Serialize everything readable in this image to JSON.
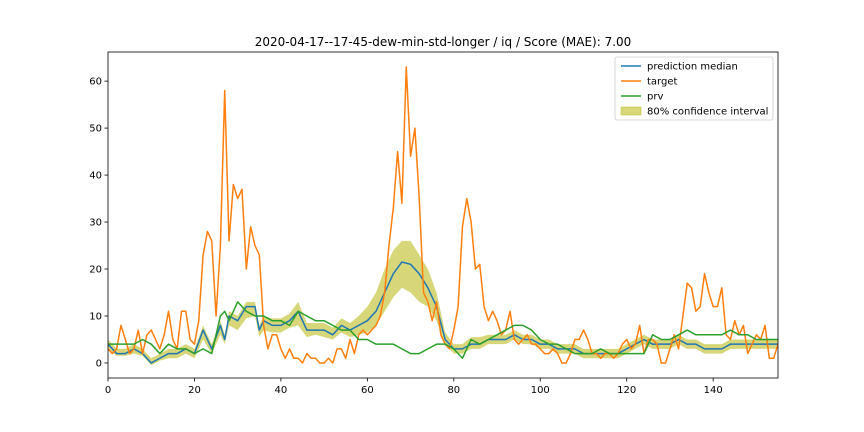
{
  "chart_data": {
    "type": "line",
    "title": "2020-04-17--17-45-dew-min-std-longer / iq / Score (MAE): 7.00",
    "xlabel": "",
    "ylabel": "",
    "xlim": [
      0,
      155
    ],
    "ylim": [
      -3.2,
      66.2
    ],
    "xticks": [
      0,
      20,
      40,
      60,
      80,
      100,
      120,
      140
    ],
    "yticks": [
      0,
      10,
      20,
      30,
      40,
      50,
      60
    ],
    "grid": false,
    "legend_position": "top-right",
    "colors": {
      "prediction": "#1f77b4",
      "target": "#ff7f0e",
      "prv": "#2ca02c",
      "ci": "#bcbd22"
    },
    "series": [
      {
        "name": "prediction median",
        "key": "prediction",
        "x": [
          0,
          2,
          4,
          6,
          8,
          10,
          12,
          14,
          16,
          18,
          20,
          22,
          24,
          26,
          27,
          28,
          30,
          32,
          34,
          35,
          36,
          38,
          40,
          42,
          44,
          46,
          48,
          50,
          52,
          54,
          56,
          58,
          60,
          62,
          64,
          66,
          68,
          70,
          72,
          74,
          76,
          78,
          80,
          82,
          84,
          86,
          88,
          90,
          92,
          94,
          96,
          98,
          100,
          102,
          104,
          106,
          108,
          110,
          112,
          114,
          116,
          118,
          120,
          122,
          124,
          126,
          128,
          130,
          132,
          134,
          136,
          138,
          140,
          142,
          144,
          146,
          148,
          150,
          152,
          155
        ],
        "values": [
          4,
          2,
          2,
          3,
          2,
          0,
          1,
          2,
          2,
          3,
          2,
          7,
          3,
          8,
          5,
          10,
          9,
          12,
          12,
          7,
          9,
          8,
          8,
          9,
          11,
          7,
          7,
          7,
          6,
          8,
          7,
          8,
          9,
          11,
          15,
          19,
          21.5,
          21,
          19,
          16,
          12,
          5,
          3,
          3,
          4,
          4,
          5,
          5,
          5,
          6,
          5,
          5,
          4,
          4,
          3,
          3,
          3,
          2,
          2,
          2,
          2,
          2,
          3,
          4,
          5,
          4,
          4,
          4,
          5,
          4,
          4,
          3,
          3,
          3,
          4,
          4,
          4,
          4,
          4,
          4
        ]
      },
      {
        "name": "target",
        "key": "target",
        "x": [
          0,
          1,
          2,
          3,
          4,
          5,
          6,
          7,
          8,
          9,
          10,
          11,
          12,
          13,
          14,
          15,
          16,
          17,
          18,
          19,
          20,
          21,
          22,
          23,
          24,
          25,
          26,
          27,
          28,
          29,
          30,
          31,
          32,
          33,
          34,
          35,
          36,
          37,
          38,
          39,
          40,
          41,
          42,
          43,
          44,
          45,
          46,
          47,
          48,
          49,
          50,
          51,
          52,
          53,
          54,
          55,
          56,
          57,
          58,
          59,
          60,
          61,
          62,
          63,
          64,
          65,
          66,
          67,
          68,
          69,
          70,
          71,
          72,
          73,
          74,
          75,
          76,
          77,
          78,
          79,
          80,
          81,
          82,
          83,
          84,
          85,
          86,
          87,
          88,
          89,
          90,
          91,
          92,
          93,
          94,
          95,
          96,
          97,
          98,
          99,
          100,
          101,
          102,
          103,
          104,
          105,
          106,
          107,
          108,
          109,
          110,
          111,
          112,
          113,
          114,
          115,
          116,
          117,
          118,
          119,
          120,
          121,
          122,
          123,
          124,
          125,
          126,
          127,
          128,
          129,
          130,
          131,
          132,
          133,
          134,
          135,
          136,
          137,
          138,
          139,
          140,
          141,
          142,
          143,
          144,
          145,
          146,
          147,
          148,
          149,
          150,
          151,
          152,
          153,
          154,
          155
        ],
        "values": [
          3,
          2,
          3,
          8,
          5,
          2,
          3,
          7,
          2,
          6,
          7,
          5,
          3,
          6,
          11,
          5,
          3,
          11,
          11,
          5,
          4,
          9,
          23,
          28,
          26,
          10,
          25,
          58,
          26,
          38,
          35,
          37,
          20,
          29,
          25,
          23,
          8,
          3,
          6,
          6,
          3,
          1,
          3,
          1,
          1,
          0,
          2,
          1,
          1,
          0,
          0,
          1,
          0,
          3,
          3,
          1,
          5,
          2,
          6,
          7,
          6,
          7,
          8,
          10,
          15,
          25,
          33,
          45,
          34,
          63,
          44,
          50,
          35,
          15,
          13,
          9,
          13,
          6,
          4,
          3,
          7,
          12,
          29,
          35,
          30,
          20,
          21,
          12,
          9,
          11,
          9,
          6,
          7,
          11,
          5,
          4,
          5,
          6,
          4,
          4,
          3,
          2,
          2,
          3,
          2,
          0,
          0,
          2,
          5,
          5,
          7,
          5,
          2,
          2,
          1,
          2,
          2,
          1,
          2,
          4,
          5,
          3,
          4,
          8,
          2,
          5,
          5,
          4,
          0,
          0,
          3,
          6,
          3,
          10,
          17,
          16,
          11,
          12,
          19,
          15,
          12,
          12,
          16,
          6,
          5,
          9,
          6,
          8,
          2,
          4,
          6,
          5,
          8,
          1,
          1,
          4
        ]
      },
      {
        "name": "prv",
        "key": "prv",
        "x": [
          0,
          2,
          4,
          6,
          8,
          10,
          12,
          14,
          16,
          18,
          20,
          22,
          24,
          26,
          27,
          28,
          30,
          32,
          34,
          36,
          38,
          40,
          42,
          44,
          46,
          48,
          50,
          52,
          54,
          56,
          58,
          60,
          62,
          64,
          66,
          68,
          70,
          72,
          74,
          76,
          78,
          80,
          82,
          84,
          86,
          88,
          90,
          92,
          94,
          96,
          98,
          100,
          102,
          104,
          106,
          108,
          110,
          112,
          114,
          116,
          118,
          120,
          122,
          124,
          126,
          128,
          130,
          132,
          134,
          136,
          138,
          140,
          142,
          144,
          146,
          148,
          150,
          152,
          155
        ],
        "values": [
          4,
          4,
          4,
          4,
          5,
          4,
          2,
          4,
          3,
          3,
          2,
          3,
          2,
          10,
          11,
          9,
          13,
          11,
          10,
          10,
          9,
          9,
          8,
          11,
          10,
          9,
          9,
          8,
          7,
          7,
          5,
          5,
          4,
          4,
          4,
          3,
          2,
          2,
          3,
          4,
          4,
          3,
          1,
          5,
          4,
          5,
          6,
          7,
          8,
          8,
          7,
          5,
          4,
          4,
          3,
          2,
          2,
          2,
          3,
          2,
          2,
          2,
          2,
          2,
          6,
          5,
          5,
          6,
          7,
          6,
          6,
          6,
          6,
          7,
          6,
          6,
          5,
          5,
          5
        ]
      }
    ],
    "confidence_band": {
      "name": "80% confidence interval",
      "key": "ci",
      "x": [
        0,
        2,
        4,
        6,
        8,
        10,
        12,
        14,
        16,
        18,
        20,
        22,
        24,
        26,
        27,
        28,
        30,
        32,
        34,
        35,
        36,
        38,
        40,
        42,
        44,
        46,
        48,
        50,
        52,
        54,
        56,
        58,
        60,
        62,
        64,
        66,
        68,
        70,
        72,
        74,
        76,
        78,
        80,
        82,
        84,
        86,
        88,
        90,
        92,
        94,
        96,
        98,
        100,
        102,
        104,
        106,
        108,
        110,
        112,
        114,
        116,
        118,
        120,
        122,
        124,
        126,
        128,
        130,
        132,
        134,
        136,
        138,
        140,
        142,
        144,
        146,
        148,
        150,
        152,
        155
      ],
      "lower": [
        3,
        1.5,
        1.5,
        2,
        1.5,
        -0.5,
        0.5,
        1,
        1,
        2,
        1,
        5,
        2,
        6,
        4,
        8,
        7,
        9.5,
        10,
        5.5,
        7,
        6.5,
        6.5,
        7.5,
        8,
        5.5,
        6,
        5.5,
        5,
        6.5,
        5.5,
        6,
        6.5,
        8,
        11,
        14,
        16,
        15,
        13,
        12,
        9,
        4,
        2,
        2,
        3,
        3,
        4,
        4,
        4,
        5,
        4,
        4,
        3,
        3,
        2,
        2,
        2,
        1,
        1,
        1,
        1,
        1,
        2,
        3,
        4,
        3,
        3,
        3,
        4,
        3,
        3,
        2,
        2,
        2,
        3,
        3,
        3,
        3,
        3,
        3
      ],
      "upper": [
        5,
        3,
        3,
        4,
        3,
        1,
        2,
        3,
        3,
        4,
        3,
        8,
        4,
        9,
        6,
        11,
        10,
        13,
        13,
        8,
        10,
        9.5,
        9.5,
        10.5,
        13,
        8.5,
        8.5,
        8.5,
        7.5,
        9.5,
        8.5,
        10,
        12,
        15,
        20,
        24,
        26,
        26,
        23,
        20,
        15,
        6.5,
        4,
        4,
        5.5,
        5.5,
        6,
        6,
        6,
        7,
        6,
        6,
        5,
        5,
        4,
        4,
        4,
        3,
        3,
        3,
        3,
        3,
        4,
        5,
        6,
        5,
        5,
        5,
        6,
        5,
        5,
        4,
        4,
        4,
        5,
        5,
        5,
        5,
        5,
        5
      ]
    }
  }
}
